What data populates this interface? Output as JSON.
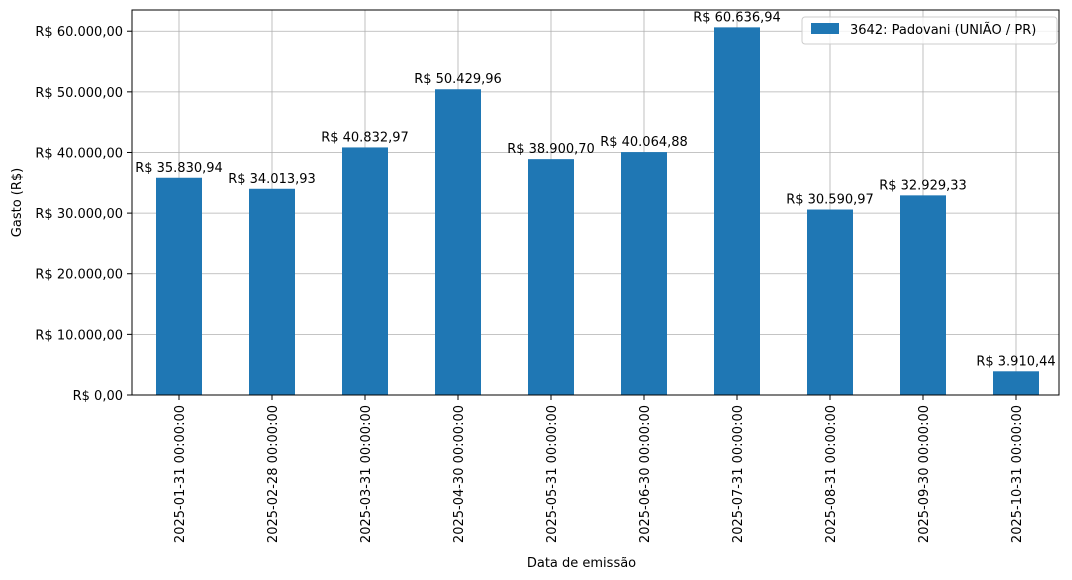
{
  "chart_data": {
    "type": "bar",
    "xlabel": "Data de emissão",
    "ylabel": "Gasto (R$)",
    "ylim": [
      0,
      63500
    ],
    "yticks": [
      0,
      10000,
      20000,
      30000,
      40000,
      50000,
      60000
    ],
    "ytick_labels": [
      "R$ 0,00",
      "R$ 10.000,00",
      "R$ 20.000,00",
      "R$ 30.000,00",
      "R$ 40.000,00",
      "R$ 50.000,00",
      "R$ 60.000,00"
    ],
    "grid": true,
    "legend_position": "top-right",
    "categories": [
      "2025-01-31 00:00:00",
      "2025-02-28 00:00:00",
      "2025-03-31 00:00:00",
      "2025-04-30 00:00:00",
      "2025-05-31 00:00:00",
      "2025-06-30 00:00:00",
      "2025-07-31 00:00:00",
      "2025-08-31 00:00:00",
      "2025-09-30 00:00:00",
      "2025-10-31 00:00:00"
    ],
    "series": [
      {
        "name": "3642: Padovani (UNIÃO / PR)",
        "color": "#1f77b4",
        "values": [
          35830.94,
          34013.93,
          40832.97,
          50429.96,
          38900.7,
          40064.88,
          60636.94,
          30590.97,
          32929.33,
          3910.44
        ],
        "labels": [
          "R$ 35.830,94",
          "R$ 34.013,93",
          "R$ 40.832,97",
          "R$ 50.429,96",
          "R$ 38.900,70",
          "R$ 40.064,88",
          "R$ 60.636,94",
          "R$ 30.590,97",
          "R$ 32.929,33",
          "R$ 3.910,44"
        ]
      }
    ]
  }
}
